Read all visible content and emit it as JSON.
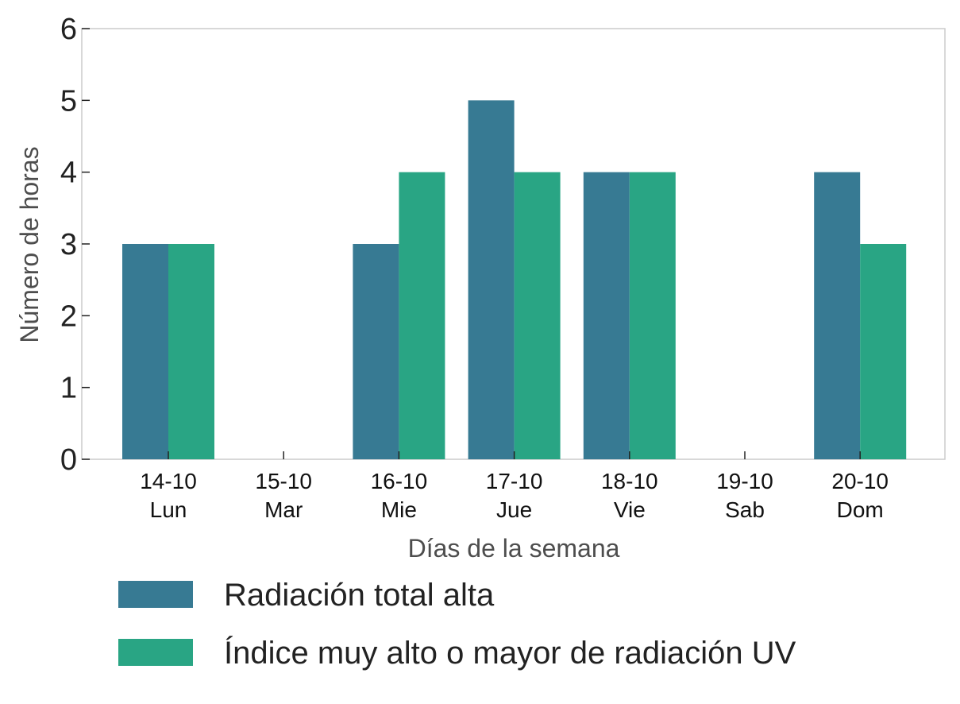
{
  "chart_data": {
    "type": "bar",
    "categories": [
      [
        "14-10",
        "Lun"
      ],
      [
        "15-10",
        "Mar"
      ],
      [
        "16-10",
        "Mie"
      ],
      [
        "17-10",
        "Jue"
      ],
      [
        "18-10",
        "Vie"
      ],
      [
        "19-10",
        "Sab"
      ],
      [
        "20-10",
        "Dom"
      ]
    ],
    "series": [
      {
        "name": "Radiación total alta",
        "color": "#377a93",
        "values": [
          3,
          0,
          3,
          5,
          4,
          0,
          4
        ]
      },
      {
        "name": "Índice muy alto o mayor de radiación UV",
        "color": "#29a584",
        "values": [
          3,
          0,
          4,
          4,
          4,
          0,
          3
        ]
      }
    ],
    "xlabel": "Días de la semana",
    "ylabel": "Número de horas",
    "ylim": [
      0,
      6
    ],
    "yticks": [
      0,
      1,
      2,
      3,
      4,
      5,
      6
    ],
    "grid": false,
    "legend_position": "bottom"
  }
}
